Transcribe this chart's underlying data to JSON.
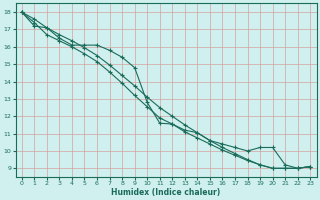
{
  "xlabel": "Humidex (Indice chaleur)",
  "bg_color": "#cff0ee",
  "grid_color": "#b0ddd8",
  "line_color": "#1a6b5a",
  "xlim": [
    -0.5,
    23.5
  ],
  "ylim": [
    8.5,
    18.5
  ],
  "xticks": [
    0,
    1,
    2,
    3,
    4,
    5,
    6,
    7,
    8,
    9,
    10,
    11,
    12,
    13,
    14,
    15,
    16,
    17,
    18,
    19,
    20,
    21,
    22,
    23
  ],
  "yticks": [
    9,
    10,
    11,
    12,
    13,
    14,
    15,
    16,
    17,
    18
  ],
  "line1_x": [
    0,
    1,
    2,
    3,
    4,
    5,
    6,
    7,
    8,
    9,
    10,
    11,
    12,
    13,
    14,
    15,
    16,
    17,
    18,
    19,
    20,
    21,
    22,
    23
  ],
  "line1_y": [
    18.0,
    17.2,
    17.1,
    16.5,
    16.1,
    16.1,
    16.1,
    15.8,
    15.4,
    14.8,
    12.8,
    11.6,
    11.55,
    11.2,
    11.05,
    10.6,
    10.4,
    10.2,
    10.0,
    10.2,
    10.2,
    9.2,
    9.0,
    9.1
  ],
  "line2_x": [
    0,
    1,
    2,
    3,
    4,
    5,
    6,
    7,
    8,
    9,
    10,
    11,
    12,
    13,
    14,
    15,
    16,
    17,
    18,
    19,
    20,
    21,
    22,
    23
  ],
  "line2_y": [
    18.0,
    17.4,
    16.7,
    16.35,
    16.0,
    15.6,
    15.15,
    14.55,
    13.9,
    13.2,
    12.55,
    11.9,
    11.55,
    11.1,
    10.75,
    10.4,
    10.05,
    9.75,
    9.45,
    9.2,
    9.0,
    9.0,
    9.0,
    9.1
  ],
  "line3_x": [
    0,
    1,
    2,
    3,
    4,
    5,
    6,
    7,
    8,
    9,
    10,
    11,
    12,
    13,
    14,
    15,
    16,
    17,
    18,
    19,
    20,
    21,
    22,
    23
  ],
  "line3_y": [
    18.0,
    17.6,
    17.1,
    16.7,
    16.35,
    15.95,
    15.5,
    14.95,
    14.35,
    13.75,
    13.1,
    12.5,
    12.0,
    11.5,
    11.05,
    10.6,
    10.2,
    9.85,
    9.5,
    9.2,
    9.0,
    9.0,
    9.0,
    9.1
  ]
}
